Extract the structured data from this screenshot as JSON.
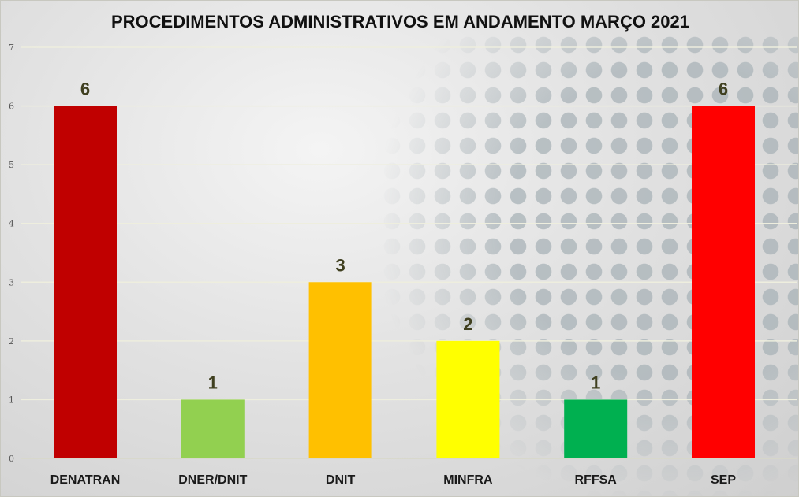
{
  "chart_data": {
    "type": "bar",
    "title": "PROCEDIMENTOS ADMINISTRATIVOS EM ANDAMENTO MARÇO 2021",
    "categories": [
      "DENATRAN",
      "DNER/DNIT",
      "DNIT",
      "MINFRA",
      "RFFSA",
      "SEP"
    ],
    "values": [
      6,
      1,
      3,
      2,
      1,
      6
    ],
    "colors": [
      "#c00000",
      "#92d050",
      "#ffc000",
      "#ffff00",
      "#00b050",
      "#ff0000"
    ],
    "xlabel": "",
    "ylabel": "",
    "ylim": [
      0,
      7
    ],
    "yticks": [
      0,
      1,
      2,
      3,
      4,
      5,
      6,
      7
    ],
    "grid": true,
    "data_labels": true
  }
}
